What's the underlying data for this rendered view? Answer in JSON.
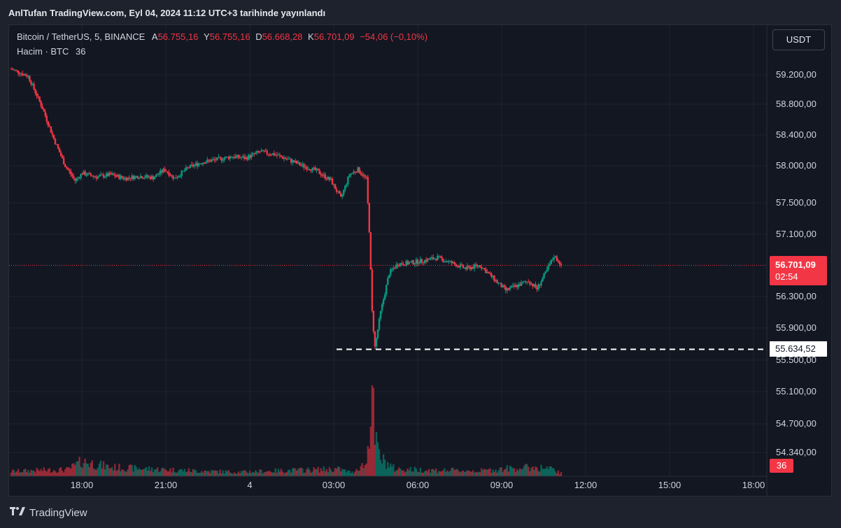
{
  "header": {
    "title": "AnlTufan TradingView.com, Eyl 04, 2024 11:12 UTC+3 tarihinde yayınlandı"
  },
  "legend": {
    "symbol": "Bitcoin / TetherUS, 5, BINANCE",
    "open_label": "A",
    "open": "56.755,16",
    "high_label": "Y",
    "high": "56.755,16",
    "low_label": "D",
    "low": "56.668,28",
    "close_label": "K",
    "close": "56.701,09",
    "change": "−54,06 (−0,10%)",
    "volume_label": "Hacim · BTC",
    "volume_value": "36"
  },
  "currency_button": "USDT",
  "last_price": {
    "value": "56.701,09",
    "countdown": "02:54"
  },
  "level": {
    "label": "55.634,52"
  },
  "footer": {
    "brand": "TradingView"
  },
  "colors": {
    "up": "#089981",
    "down": "#f23645",
    "background": "#131722",
    "grid": "#1f2330"
  },
  "chart_data": {
    "type": "candlestick",
    "interval": "5m",
    "y_ticks": [
      {
        "value": 59200,
        "label": "59.200,00"
      },
      {
        "value": 58800,
        "label": "58.800,00"
      },
      {
        "value": 58400,
        "label": "58.400,00"
      },
      {
        "value": 58000,
        "label": "58.000,00"
      },
      {
        "value": 57500,
        "label": "57.500,00"
      },
      {
        "value": 57100,
        "label": "57.100,00"
      },
      {
        "value": 56300,
        "label": "56.300,00"
      },
      {
        "value": 55900,
        "label": "55.900,00"
      },
      {
        "value": 55500,
        "label": "55.500,00"
      },
      {
        "value": 55100,
        "label": "55.100,00"
      },
      {
        "value": 54700,
        "label": "54.700,00"
      },
      {
        "value": 54340,
        "label": "54.340,00"
      }
    ],
    "x_ticks": [
      "18:00",
      "21:00",
      "4",
      "03:00",
      "06:00",
      "09:00",
      "12:00",
      "15:00",
      "18:00"
    ],
    "horizontal_line": 55634.52,
    "last_close": 56701.09,
    "price_path": [
      [
        0,
        59280
      ],
      [
        12,
        59180
      ],
      [
        22,
        58750
      ],
      [
        30,
        58350
      ],
      [
        38,
        58000
      ],
      [
        45,
        57800
      ],
      [
        50,
        57900
      ],
      [
        60,
        57850
      ],
      [
        70,
        57880
      ],
      [
        80,
        57830
      ],
      [
        90,
        57860
      ],
      [
        100,
        57840
      ],
      [
        108,
        57950
      ],
      [
        115,
        57830
      ],
      [
        125,
        57980
      ],
      [
        135,
        58050
      ],
      [
        145,
        58080
      ],
      [
        155,
        58120
      ],
      [
        165,
        58100
      ],
      [
        175,
        58180
      ],
      [
        185,
        58150
      ],
      [
        195,
        58080
      ],
      [
        205,
        58000
      ],
      [
        215,
        57930
      ],
      [
        225,
        57800
      ],
      [
        232,
        57560
      ],
      [
        238,
        57880
      ],
      [
        244,
        57950
      ],
      [
        250,
        57820
      ],
      [
        252,
        57150
      ],
      [
        254,
        56100
      ],
      [
        256,
        55660
      ],
      [
        260,
        56100
      ],
      [
        266,
        56600
      ],
      [
        272,
        56720
      ],
      [
        280,
        56730
      ],
      [
        290,
        56760
      ],
      [
        300,
        56800
      ],
      [
        310,
        56730
      ],
      [
        320,
        56660
      ],
      [
        330,
        56700
      ],
      [
        340,
        56520
      ],
      [
        348,
        56380
      ],
      [
        356,
        56440
      ],
      [
        364,
        56500
      ],
      [
        370,
        56400
      ],
      [
        376,
        56600
      ],
      [
        382,
        56820
      ],
      [
        388,
        56700
      ]
    ],
    "volume_path": [
      [
        0,
        8
      ],
      [
        20,
        10
      ],
      [
        40,
        11
      ],
      [
        50,
        25
      ],
      [
        70,
        15
      ],
      [
        100,
        12
      ],
      [
        130,
        9
      ],
      [
        160,
        7
      ],
      [
        200,
        10
      ],
      [
        230,
        12
      ],
      [
        240,
        6
      ],
      [
        245,
        16
      ],
      [
        250,
        20
      ],
      [
        252,
        80
      ],
      [
        254,
        150
      ],
      [
        256,
        60
      ],
      [
        260,
        30
      ],
      [
        270,
        12
      ],
      [
        300,
        10
      ],
      [
        330,
        9
      ],
      [
        350,
        13
      ],
      [
        370,
        15
      ],
      [
        380,
        12
      ],
      [
        388,
        4
      ]
    ],
    "candle_count": 388,
    "volume_latest": 36
  }
}
